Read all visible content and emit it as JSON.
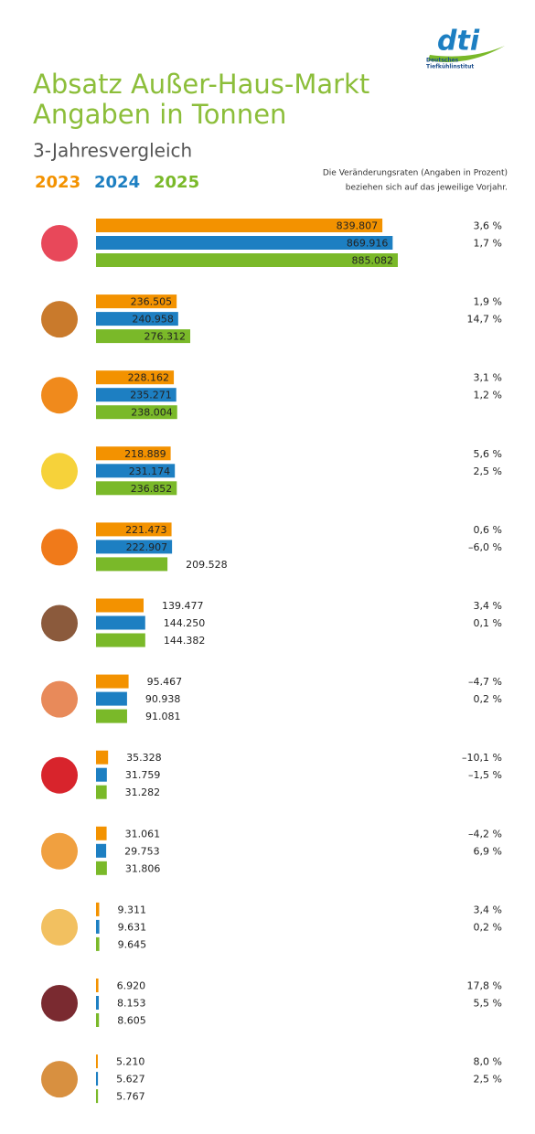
{
  "logo": {
    "name": "dti",
    "lines": [
      "Deutsches",
      "Tiefkühlinstitut"
    ]
  },
  "chart_data": {
    "type": "bar",
    "orientation": "horizontal",
    "title": [
      "Absatz Außer-Haus-Markt",
      "Angaben in Tonnen"
    ],
    "subtitle": "3-Jahresvergleich",
    "note": [
      "Die Veränderungsraten (Angaben in Prozent)",
      "beziehen sich auf das jeweilige Vorjahr."
    ],
    "categories": [
      null,
      null,
      null,
      null,
      null,
      null,
      null,
      null,
      null,
      null,
      null,
      null
    ],
    "series": [
      {
        "name": "2023",
        "color": "#f39200",
        "values": [
          839807,
          236505,
          228162,
          218889,
          221473,
          139477,
          95467,
          35328,
          31061,
          9311,
          6920,
          5210
        ],
        "value_labels": [
          "839.807",
          "236.505",
          "228.162",
          "218.889",
          "221.473",
          "139.477",
          "95.467",
          "35.328",
          "31.061",
          "9.311",
          "6.920",
          "5.210"
        ]
      },
      {
        "name": "2024",
        "color": "#1d7fc2",
        "values": [
          869916,
          240958,
          235271,
          231174,
          222907,
          144250,
          90938,
          31759,
          29753,
          9631,
          8153,
          5627
        ],
        "value_labels": [
          "869.916",
          "240.958",
          "235.271",
          "231.174",
          "222.907",
          "144.250",
          "90.938",
          "31.759",
          "29.753",
          "9.631",
          "8.153",
          "5.627"
        ]
      },
      {
        "name": "2025",
        "color": "#7ab929",
        "values": [
          885082,
          276312,
          238004,
          236852,
          209528,
          144382,
          91081,
          31282,
          31806,
          9645,
          8605,
          5767
        ],
        "value_labels": [
          "885.082",
          "276.312",
          "238.004",
          "236.852",
          "209.528",
          "144.382",
          "91.081",
          "31.282",
          "31.806",
          "9.645",
          "8.605",
          "5.767"
        ]
      }
    ],
    "changes": [
      [
        3.6,
        1.7
      ],
      [
        1.9,
        14.7
      ],
      [
        3.1,
        1.2
      ],
      [
        5.6,
        2.5
      ],
      [
        0.6,
        -6.0
      ],
      [
        3.4,
        0.1
      ],
      [
        -4.7,
        0.2
      ],
      [
        -10.1,
        -1.5
      ],
      [
        -4.2,
        6.9
      ],
      [
        3.4,
        0.2
      ],
      [
        17.8,
        5.5
      ],
      [
        8.0,
        2.5
      ]
    ],
    "change_labels": [
      [
        "3,6 %",
        "1,7 %"
      ],
      [
        "1,9 %",
        "14,7 %"
      ],
      [
        "3,1 %",
        "1,2 %"
      ],
      [
        "5,6 %",
        "2,5 %"
      ],
      [
        "0,6 %",
        "–6,0 %"
      ],
      [
        "3,4 %",
        "0,1 %"
      ],
      [
        "–4,7 %",
        "0,2 %"
      ],
      [
        "–10,1 %",
        "–1,5 %"
      ],
      [
        "–4,2 %",
        "6,9 %"
      ],
      [
        "3,4 %",
        "0,2 %"
      ],
      [
        "17,8 %",
        "5,5 %"
      ],
      [
        "8,0 %",
        "2,5 %"
      ]
    ]
  }
}
